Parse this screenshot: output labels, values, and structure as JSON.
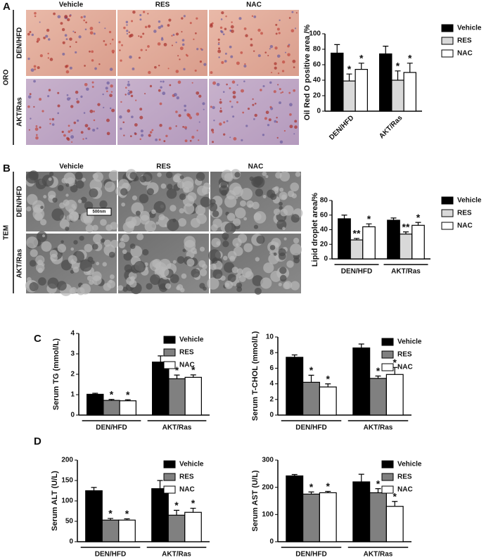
{
  "figure": {
    "panel_a": {
      "label": "A",
      "columns": [
        "Vehicle",
        "RES",
        "NAC"
      ],
      "rows": [
        "DEN/HFD",
        "AKT/Ras"
      ],
      "stain": "ORO"
    },
    "panel_b": {
      "label": "B",
      "columns": [
        "Vehicle",
        "RES",
        "NAC"
      ],
      "rows": [
        "DEN/HFD",
        "AKT/Ras"
      ],
      "stain": "TEM",
      "scale_bar": "500nm"
    },
    "panel_c": {
      "label": "C"
    },
    "panel_d": {
      "label": "D"
    }
  },
  "chart_data": [
    {
      "type": "bar",
      "y_label": "Oil Red O positive area /%",
      "categories": [
        "DEN/HFD",
        "AKT/Ras"
      ],
      "series": [
        {
          "name": "Vehicle",
          "color": "#000000",
          "values": [
            75,
            74
          ],
          "errors": [
            11,
            10
          ]
        },
        {
          "name": "RES",
          "color": "#d9d9d9",
          "values": [
            39,
            40
          ],
          "errors": [
            9,
            12
          ],
          "significance": [
            "*",
            "*"
          ]
        },
        {
          "name": "NAC",
          "color": "#ffffff",
          "values": [
            54,
            50
          ],
          "errors": [
            8,
            12
          ],
          "significance": [
            "*",
            "*"
          ]
        }
      ],
      "ylim": [
        0,
        100
      ],
      "yticks": [
        0,
        20,
        40,
        60,
        80,
        100
      ],
      "legend": "right"
    },
    {
      "type": "bar",
      "y_label": "Lipid droplet area/%",
      "categories": [
        "DEN/HFD",
        "AKT/Ras"
      ],
      "series": [
        {
          "name": "Vehicle",
          "color": "#000000",
          "values": [
            55,
            53
          ],
          "errors": [
            5,
            3
          ]
        },
        {
          "name": "RES",
          "color": "#d9d9d9",
          "values": [
            26,
            34
          ],
          "errors": [
            2,
            3
          ],
          "significance": [
            "**",
            "**"
          ]
        },
        {
          "name": "NAC",
          "color": "#ffffff",
          "values": [
            44,
            46
          ],
          "errors": [
            4,
            4
          ],
          "significance": [
            "*",
            "*"
          ]
        }
      ],
      "ylim": [
        0,
        80
      ],
      "yticks": [
        0,
        20,
        40,
        60,
        80
      ],
      "legend": "right"
    },
    {
      "type": "bar",
      "y_label": "Serum TG (mmol/L)",
      "categories": [
        "DEN/HFD",
        "AKT/Ras"
      ],
      "series": [
        {
          "name": "Vehicle",
          "color": "#000000",
          "values": [
            1.02,
            2.6
          ],
          "errors": [
            0.05,
            0.3
          ]
        },
        {
          "name": "RES",
          "color": "#808080",
          "values": [
            0.72,
            1.78
          ],
          "errors": [
            0.05,
            0.18
          ],
          "significance": [
            "*",
            "*"
          ]
        },
        {
          "name": "NAC",
          "color": "#ffffff",
          "values": [
            0.7,
            1.85
          ],
          "errors": [
            0.05,
            0.12
          ],
          "significance": [
            "*",
            "*"
          ]
        }
      ],
      "ylim": [
        0,
        4
      ],
      "yticks": [
        0,
        1,
        2,
        3,
        4
      ],
      "legend": "right"
    },
    {
      "type": "bar",
      "y_label": "Serum T-CHOL (mmol/L)",
      "categories": [
        "DEN/HFD",
        "AKT/Ras"
      ],
      "series": [
        {
          "name": "Vehicle",
          "color": "#000000",
          "values": [
            7.4,
            8.6
          ],
          "errors": [
            0.3,
            0.5
          ]
        },
        {
          "name": "RES",
          "color": "#808080",
          "values": [
            4.2,
            4.7
          ],
          "errors": [
            0.9,
            0.3
          ],
          "significance": [
            "*",
            "*"
          ]
        },
        {
          "name": "NAC",
          "color": "#ffffff",
          "values": [
            3.6,
            5.2
          ],
          "errors": [
            0.4,
            0.9
          ],
          "significance": [
            "*",
            "*"
          ]
        }
      ],
      "ylim": [
        0,
        10
      ],
      "yticks": [
        0,
        2,
        4,
        6,
        8,
        10
      ],
      "legend": "right"
    },
    {
      "type": "bar",
      "y_label": "Serum ALT (U/L)",
      "categories": [
        "DEN/HFD",
        "AKT/Ras"
      ],
      "series": [
        {
          "name": "Vehicle",
          "color": "#000000",
          "values": [
            125,
            130
          ],
          "errors": [
            8,
            20
          ]
        },
        {
          "name": "RES",
          "color": "#808080",
          "values": [
            53,
            65
          ],
          "errors": [
            4,
            12
          ],
          "significance": [
            "*",
            "*"
          ]
        },
        {
          "name": "NAC",
          "color": "#ffffff",
          "values": [
            53,
            72
          ],
          "errors": [
            3,
            10
          ],
          "significance": [
            "*",
            "*"
          ]
        }
      ],
      "ylim": [
        0,
        200
      ],
      "yticks": [
        0,
        50,
        100,
        150,
        200
      ],
      "legend": "right"
    },
    {
      "type": "bar",
      "y_label": "Serum AST (U/L)",
      "categories": [
        "DEN/HFD",
        "AKT/Ras"
      ],
      "series": [
        {
          "name": "Vehicle",
          "color": "#000000",
          "values": [
            242,
            220
          ],
          "errors": [
            5,
            28
          ]
        },
        {
          "name": "RES",
          "color": "#808080",
          "values": [
            175,
            180
          ],
          "errors": [
            8,
            15
          ],
          "significance": [
            "*",
            "*"
          ]
        },
        {
          "name": "NAC",
          "color": "#ffffff",
          "values": [
            180,
            130
          ],
          "errors": [
            5,
            18
          ],
          "significance": [
            "*",
            "*"
          ]
        }
      ],
      "ylim": [
        0,
        300
      ],
      "yticks": [
        0,
        100,
        200,
        300
      ],
      "legend": "right"
    }
  ]
}
